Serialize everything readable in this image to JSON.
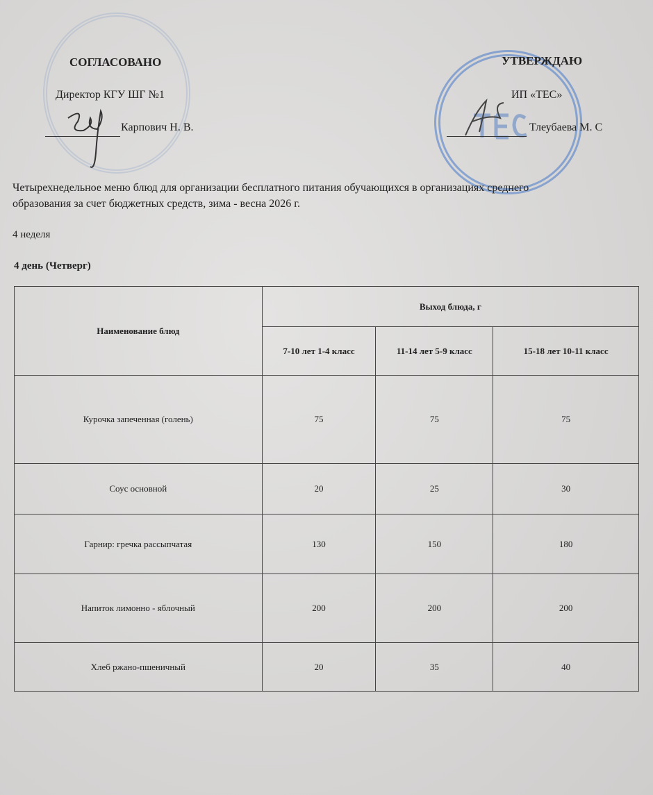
{
  "approval_left": {
    "heading": "СОГЛАСОВАНО",
    "position": "Директор КГУ ШГ №1",
    "name": "Карпович Н. В."
  },
  "approval_right": {
    "heading": "УТВЕРЖДАЮ",
    "position": "ИП «ТЕС»",
    "name": "Тлеубаева М. С",
    "stamp_text": "ТЕС"
  },
  "title": "Четырехнедельное меню блюд для организации бесплатного питания обучающихся в организациях среднего",
  "title_line2": "образования за счет бюджетных средств, зима - весна 2026 г.",
  "week": "4 неделя",
  "day": "4 день (Четверг)",
  "table": {
    "col_name_header": "Наименование блюд",
    "yield_header": "Выход блюда, г",
    "age_headers": [
      "7-10 лет 1-4 класс",
      "11-14 лет 5-9 класс",
      "15-18 лет 10-11 класс"
    ],
    "rows": [
      {
        "name": "Курочка запеченная (голень)",
        "values": [
          "75",
          "75",
          "75"
        ]
      },
      {
        "name": "Соус основной",
        "values": [
          "20",
          "25",
          "30"
        ]
      },
      {
        "name": "Гарнир: гречка рассыпчатая",
        "values": [
          "130",
          "150",
          "180"
        ]
      },
      {
        "name": "Напиток лимонно - яблочный",
        "values": [
          "200",
          "200",
          "200"
        ]
      },
      {
        "name": "Хлеб ржано-пшеничный",
        "values": [
          "20",
          "35",
          "40"
        ]
      }
    ]
  }
}
